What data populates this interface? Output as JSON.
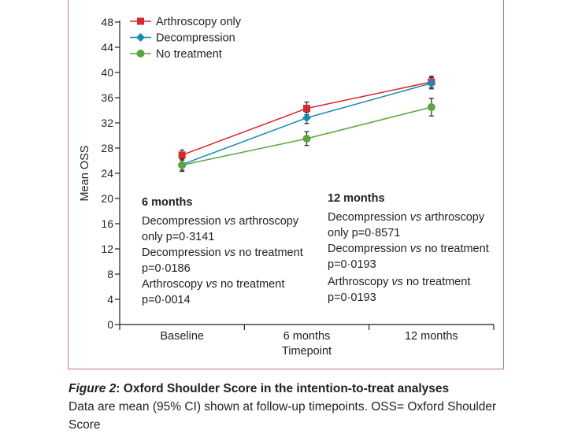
{
  "chart_data": {
    "type": "line",
    "ylabel": "Mean OSS",
    "xlabel": "Timepoint",
    "categories": [
      "Baseline",
      "6 months",
      "12 months"
    ],
    "ylim": [
      0,
      48
    ],
    "yticks": [
      0,
      4,
      8,
      12,
      16,
      20,
      24,
      28,
      32,
      36,
      40,
      44,
      48
    ],
    "legend_position": "top-left",
    "grid": false,
    "series": [
      {
        "name": "Arthroscopy only",
        "color": "#d7282f",
        "marker": "square",
        "values": [
          26.9,
          34.3,
          38.5
        ],
        "ci_low": [
          26.1,
          33.3,
          37.6
        ],
        "ci_high": [
          27.7,
          35.3,
          39.4
        ]
      },
      {
        "name": "Decompression",
        "color": "#1a8ab4",
        "marker": "diamond",
        "values": [
          25.4,
          32.8,
          38.3
        ],
        "ci_low": [
          24.5,
          31.9,
          37.4
        ],
        "ci_high": [
          26.3,
          33.7,
          39.2
        ]
      },
      {
        "name": "No treatment",
        "color": "#5ca43f",
        "marker": "circle",
        "values": [
          25.3,
          29.5,
          34.5
        ],
        "ci_low": [
          24.3,
          28.4,
          33.1
        ],
        "ci_high": [
          26.3,
          30.6,
          35.9
        ]
      }
    ]
  },
  "annotations": [
    {
      "header": "6 months",
      "comparisons": [
        {
          "a": "Decompression",
          "vs": "vs",
          "b": "arthroscopy only",
          "p": "p=0·3141"
        },
        {
          "a": "Decompression",
          "vs": "vs",
          "b": "no treatment",
          "p": "p=0·0186"
        },
        {
          "a": "Arthroscopy",
          "vs": "vs",
          "b": "no treatment",
          "p": "p=0·0014"
        }
      ]
    },
    {
      "header": "12 months",
      "comparisons": [
        {
          "a": "Decompression",
          "vs": "vs",
          "b": "arthroscopy only",
          "p": "p=0·8571"
        },
        {
          "a": "Decompression",
          "vs": "vs",
          "b": "no treatment",
          "p": "p=0·0193"
        },
        {
          "a": "Arthroscopy",
          "vs": "vs",
          "b": "no treatment",
          "p": "p=0·0193"
        }
      ]
    }
  ],
  "caption": {
    "label": "Figure 2",
    "title": ": Oxford Shoulder Score in the intention-to-treat analyses",
    "text": "Data are mean (95% CI) shown at follow-up timepoints. OSS= Oxford Shoulder Score"
  }
}
